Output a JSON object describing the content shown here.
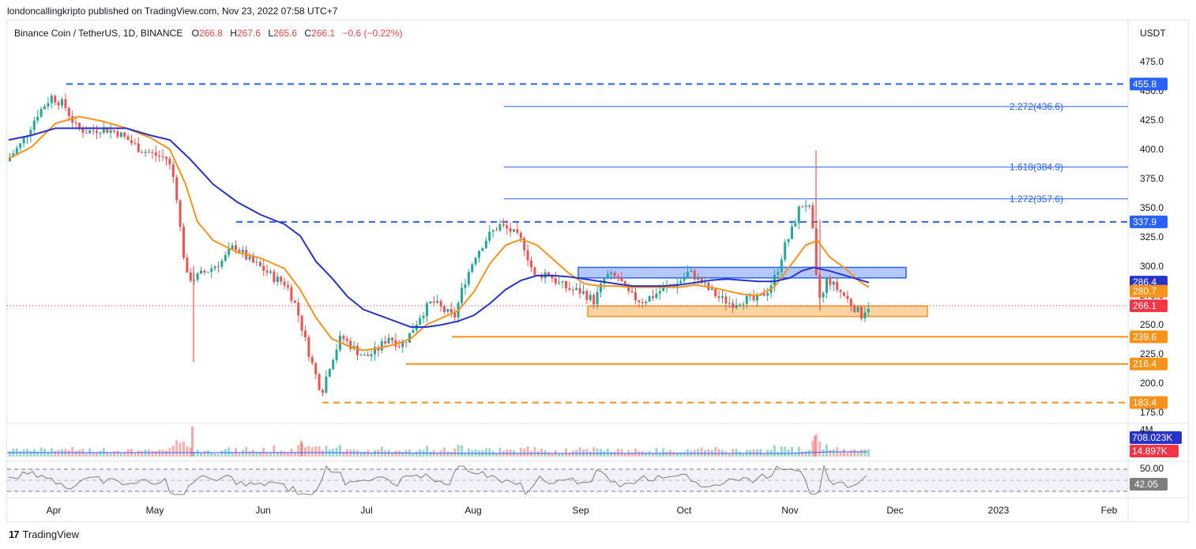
{
  "header": {
    "published": "londoncallingkripto published on TradingView.com, Nov 23, 2022 07:58 UTC+7"
  },
  "legend": {
    "symbol": "Binance Coin / TetherUS, 1D, BINANCE",
    "o_label": "O",
    "o_value": "266.8",
    "h_label": "H",
    "h_value": "267.6",
    "l_label": "L",
    "l_value": "265.6",
    "c_label": "C",
    "c_value": "266.1",
    "change": "−0.6 (−0.22%)"
  },
  "price_axis": {
    "currency": "USDT",
    "ticks": [
      "475.0",
      "450.0",
      "425.0",
      "400.0",
      "375.0",
      "350.0",
      "325.0",
      "300.0",
      "275.0",
      "250.0",
      "225.0",
      "200.0",
      "175.0"
    ],
    "tick_values": [
      475,
      450,
      425,
      400,
      375,
      350,
      325,
      300,
      275,
      250,
      225,
      200,
      175
    ]
  },
  "time_axis": {
    "ticks": [
      "Apr",
      "May",
      "Jun",
      "Jul",
      "Aug",
      "Sep",
      "Oct",
      "Nov",
      "Dec",
      "2023",
      "Feb"
    ]
  },
  "levels": [
    {
      "label": "455.8",
      "value": 455.8,
      "color": "#2962ff",
      "style": "dashed"
    },
    {
      "label": "337.9",
      "value": 337.9,
      "color": "#2962ff",
      "style": "dashed"
    },
    {
      "label": "239.6",
      "value": 239.6,
      "color": "#f7931a",
      "style": "solid"
    },
    {
      "label": "216.4",
      "value": 216.4,
      "color": "#f7931a",
      "style": "solid"
    },
    {
      "label": "183.4",
      "value": 183.4,
      "color": "#f7931a",
      "style": "dashed"
    }
  ],
  "fib_levels": [
    {
      "label": "2.272(436.6)",
      "value": 436.6
    },
    {
      "label": "1.618(384.9)",
      "value": 384.9
    },
    {
      "label": "1.272(357.6)",
      "value": 357.6
    }
  ],
  "price_tags": {
    "ma_blue": {
      "label": "286.4",
      "color": "#2733c9"
    },
    "ma_orange": {
      "label": "280.7",
      "color": "#f7931a"
    },
    "last_price": {
      "label": "266.1",
      "color": "#f23645"
    }
  },
  "zones": {
    "resistance_zone": {
      "top": 299,
      "bottom": 290,
      "color": "#2962ff"
    },
    "support_zone": {
      "top": 266,
      "bottom": 257,
      "color": "#f7931a"
    }
  },
  "volume_panel": {
    "label_4m": "4M",
    "tag_volume_ma": {
      "label": "708.023K",
      "color": "#2733c9"
    },
    "tag_volume": {
      "label": "14.897K",
      "color": "#f23645"
    }
  },
  "rsi_panel": {
    "label_50": "50.00",
    "tag_rsi": {
      "label": "42.05",
      "color": "#7e7e7e"
    }
  },
  "colors": {
    "up": "#26a69a",
    "down": "#ef5350",
    "ma_fast": "#f7931a",
    "ma_slow": "#2733c9"
  },
  "branding": {
    "name": "TradingView"
  }
}
